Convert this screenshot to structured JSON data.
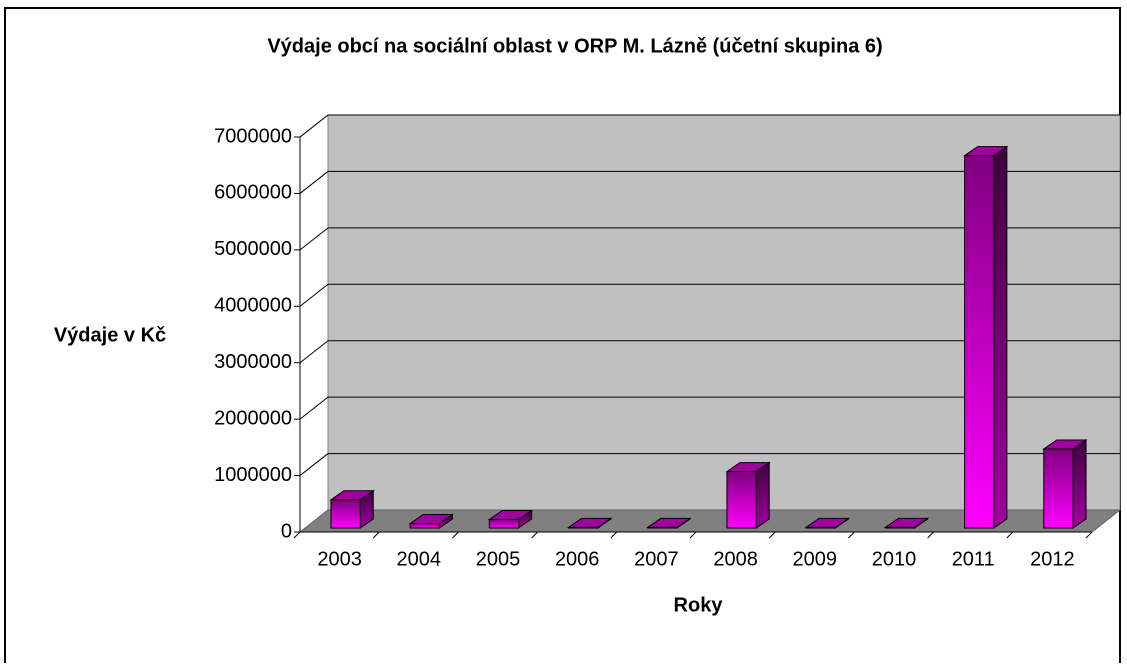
{
  "chart_data": {
    "type": "bar3d",
    "title": "Výdaje obcí na sociální oblast v ORP M. Lázně (účetní skupina 6)",
    "x_label": "Roky",
    "y_label": "Výdaje v Kč",
    "categories": [
      "2003",
      "2004",
      "2005",
      "2006",
      "2007",
      "2008",
      "2009",
      "2010",
      "2011",
      "2012"
    ],
    "values": [
      500000,
      80000,
      150000,
      10000,
      10000,
      1000000,
      10000,
      10000,
      6600000,
      1400000
    ],
    "color": "#ff00ff",
    "ylim": [
      0,
      7000000
    ],
    "yticks": [
      0,
      1000000,
      2000000,
      3000000,
      4000000,
      5000000,
      6000000,
      7000000
    ],
    "grid": true
  }
}
